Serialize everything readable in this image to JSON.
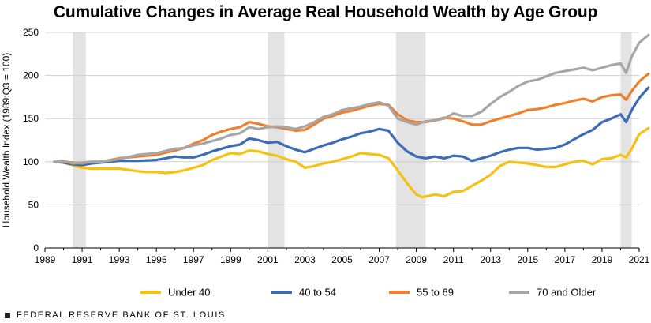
{
  "chart_data": {
    "type": "line",
    "title": "Cumulative Changes in Average Real Household Wealth by Age Group",
    "ylabel": "Household Wealth Index (1989:Q3 = 100)",
    "xlabel": "",
    "xlim": [
      1989,
      2021
    ],
    "ylim": [
      0,
      250
    ],
    "yticks": [
      0,
      50,
      100,
      150,
      200,
      250
    ],
    "xticks": [
      "1989",
      "1991",
      "1993",
      "1995",
      "1997",
      "1999",
      "2001",
      "2003",
      "2005",
      "2007",
      "2009",
      "2011",
      "2013",
      "2015",
      "2017",
      "2019",
      "2021"
    ],
    "grid": true,
    "legend_position": "bottom",
    "recessions": [
      [
        1990.5,
        1991.2
      ],
      [
        2001.0,
        2001.9
      ],
      [
        2007.9,
        2009.5
      ],
      [
        2020.0,
        2020.6
      ]
    ],
    "series": [
      {
        "name": "Under 40",
        "color": "#f5c211",
        "points": [
          [
            1989.5,
            100
          ],
          [
            1990.0,
            99
          ],
          [
            1990.5,
            96
          ],
          [
            1991.0,
            93
          ],
          [
            1991.5,
            92
          ],
          [
            1992.0,
            92
          ],
          [
            1993.0,
            92
          ],
          [
            1994.0,
            89
          ],
          [
            1994.5,
            88
          ],
          [
            1995.0,
            88
          ],
          [
            1995.5,
            87
          ],
          [
            1996.0,
            88
          ],
          [
            1996.5,
            90
          ],
          [
            1997.0,
            93
          ],
          [
            1997.5,
            96
          ],
          [
            1998.0,
            102
          ],
          [
            1998.5,
            106
          ],
          [
            1999.0,
            110
          ],
          [
            1999.5,
            109
          ],
          [
            2000.0,
            113
          ],
          [
            2000.5,
            112
          ],
          [
            2001.0,
            109
          ],
          [
            2001.5,
            107
          ],
          [
            2002.0,
            103
          ],
          [
            2002.5,
            100
          ],
          [
            2003.0,
            93
          ],
          [
            2003.5,
            95
          ],
          [
            2004.0,
            98
          ],
          [
            2004.5,
            100
          ],
          [
            2005.0,
            103
          ],
          [
            2005.5,
            106
          ],
          [
            2006.0,
            110
          ],
          [
            2006.5,
            109
          ],
          [
            2007.0,
            108
          ],
          [
            2007.5,
            104
          ],
          [
            2008.0,
            90
          ],
          [
            2008.5,
            75
          ],
          [
            2009.0,
            62
          ],
          [
            2009.3,
            59
          ],
          [
            2009.6,
            60
          ],
          [
            2010.0,
            62
          ],
          [
            2010.5,
            60
          ],
          [
            2011.0,
            65
          ],
          [
            2011.5,
            66
          ],
          [
            2012.0,
            72
          ],
          [
            2012.5,
            78
          ],
          [
            2013.0,
            85
          ],
          [
            2013.5,
            95
          ],
          [
            2014.0,
            100
          ],
          [
            2014.5,
            99
          ],
          [
            2015.0,
            98
          ],
          [
            2015.5,
            96
          ],
          [
            2016.0,
            94
          ],
          [
            2016.5,
            94
          ],
          [
            2017.0,
            97
          ],
          [
            2017.5,
            100
          ],
          [
            2018.0,
            101
          ],
          [
            2018.5,
            97
          ],
          [
            2019.0,
            103
          ],
          [
            2019.5,
            104
          ],
          [
            2020.0,
            108
          ],
          [
            2020.3,
            105
          ],
          [
            2020.6,
            115
          ],
          [
            2021.0,
            132
          ],
          [
            2021.5,
            139
          ]
        ]
      },
      {
        "name": "40 to 54",
        "color": "#3b6cb5",
        "points": [
          [
            1989.5,
            100
          ],
          [
            1990.0,
            99
          ],
          [
            1990.5,
            97
          ],
          [
            1991.0,
            96
          ],
          [
            1991.5,
            98
          ],
          [
            1992.0,
            99
          ],
          [
            1993.0,
            101
          ],
          [
            1994.0,
            101
          ],
          [
            1995.0,
            102
          ],
          [
            1996.0,
            106
          ],
          [
            1996.5,
            105
          ],
          [
            1997.0,
            105
          ],
          [
            1997.5,
            108
          ],
          [
            1998.0,
            112
          ],
          [
            1998.5,
            115
          ],
          [
            1999.0,
            118
          ],
          [
            1999.5,
            120
          ],
          [
            2000.0,
            127
          ],
          [
            2000.5,
            125
          ],
          [
            2001.0,
            122
          ],
          [
            2001.5,
            123
          ],
          [
            2002.0,
            118
          ],
          [
            2002.5,
            114
          ],
          [
            2003.0,
            111
          ],
          [
            2003.5,
            115
          ],
          [
            2004.0,
            119
          ],
          [
            2004.5,
            122
          ],
          [
            2005.0,
            126
          ],
          [
            2005.5,
            129
          ],
          [
            2006.0,
            133
          ],
          [
            2006.5,
            135
          ],
          [
            2007.0,
            138
          ],
          [
            2007.5,
            136
          ],
          [
            2008.0,
            122
          ],
          [
            2008.5,
            112
          ],
          [
            2009.0,
            106
          ],
          [
            2009.5,
            104
          ],
          [
            2010.0,
            106
          ],
          [
            2010.5,
            104
          ],
          [
            2011.0,
            107
          ],
          [
            2011.5,
            106
          ],
          [
            2012.0,
            101
          ],
          [
            2012.5,
            104
          ],
          [
            2013.0,
            107
          ],
          [
            2013.5,
            111
          ],
          [
            2014.0,
            114
          ],
          [
            2014.5,
            116
          ],
          [
            2015.0,
            116
          ],
          [
            2015.5,
            114
          ],
          [
            2016.0,
            115
          ],
          [
            2016.5,
            116
          ],
          [
            2017.0,
            120
          ],
          [
            2017.5,
            126
          ],
          [
            2018.0,
            132
          ],
          [
            2018.5,
            137
          ],
          [
            2019.0,
            146
          ],
          [
            2019.5,
            150
          ],
          [
            2020.0,
            155
          ],
          [
            2020.3,
            146
          ],
          [
            2020.6,
            160
          ],
          [
            2021.0,
            174
          ],
          [
            2021.5,
            186
          ]
        ]
      },
      {
        "name": "55 to 69",
        "color": "#f07f2b",
        "points": [
          [
            1989.5,
            100
          ],
          [
            1990.0,
            100
          ],
          [
            1990.5,
            99
          ],
          [
            1991.0,
            98
          ],
          [
            1991.5,
            100
          ],
          [
            1992.0,
            100
          ],
          [
            1993.0,
            104
          ],
          [
            1994.0,
            106
          ],
          [
            1995.0,
            108
          ],
          [
            1996.0,
            113
          ],
          [
            1996.5,
            116
          ],
          [
            1997.0,
            121
          ],
          [
            1997.5,
            125
          ],
          [
            1998.0,
            131
          ],
          [
            1998.5,
            135
          ],
          [
            1999.0,
            138
          ],
          [
            1999.5,
            140
          ],
          [
            2000.0,
            146
          ],
          [
            2000.5,
            144
          ],
          [
            2001.0,
            141
          ],
          [
            2001.5,
            140
          ],
          [
            2002.0,
            138
          ],
          [
            2002.5,
            136
          ],
          [
            2003.0,
            137
          ],
          [
            2003.5,
            143
          ],
          [
            2004.0,
            150
          ],
          [
            2004.5,
            153
          ],
          [
            2005.0,
            157
          ],
          [
            2005.5,
            159
          ],
          [
            2006.0,
            162
          ],
          [
            2006.5,
            165
          ],
          [
            2007.0,
            167
          ],
          [
            2007.5,
            166
          ],
          [
            2008.0,
            155
          ],
          [
            2008.5,
            148
          ],
          [
            2009.0,
            146
          ],
          [
            2009.5,
            146
          ],
          [
            2010.0,
            148
          ],
          [
            2010.5,
            151
          ],
          [
            2011.0,
            150
          ],
          [
            2011.5,
            147
          ],
          [
            2012.0,
            143
          ],
          [
            2012.5,
            143
          ],
          [
            2013.0,
            147
          ],
          [
            2013.5,
            150
          ],
          [
            2014.0,
            153
          ],
          [
            2014.5,
            156
          ],
          [
            2015.0,
            160
          ],
          [
            2015.5,
            161
          ],
          [
            2016.0,
            163
          ],
          [
            2016.5,
            166
          ],
          [
            2017.0,
            168
          ],
          [
            2017.5,
            171
          ],
          [
            2018.0,
            173
          ],
          [
            2018.5,
            170
          ],
          [
            2019.0,
            175
          ],
          [
            2019.5,
            177
          ],
          [
            2020.0,
            178
          ],
          [
            2020.3,
            172
          ],
          [
            2020.6,
            182
          ],
          [
            2021.0,
            193
          ],
          [
            2021.5,
            202
          ]
        ]
      },
      {
        "name": "70 and Older",
        "color": "#a6a6a6",
        "points": [
          [
            1989.5,
            100
          ],
          [
            1990.0,
            101
          ],
          [
            1990.5,
            98
          ],
          [
            1991.0,
            99
          ],
          [
            1991.5,
            100
          ],
          [
            1992.0,
            100
          ],
          [
            1993.0,
            103
          ],
          [
            1994.0,
            108
          ],
          [
            1995.0,
            110
          ],
          [
            1996.0,
            115
          ],
          [
            1996.5,
            116
          ],
          [
            1997.0,
            119
          ],
          [
            1997.5,
            121
          ],
          [
            1998.0,
            124
          ],
          [
            1998.5,
            127
          ],
          [
            1999.0,
            131
          ],
          [
            1999.5,
            133
          ],
          [
            2000.0,
            140
          ],
          [
            2000.5,
            138
          ],
          [
            2001.0,
            140
          ],
          [
            2001.5,
            141
          ],
          [
            2002.0,
            140
          ],
          [
            2002.5,
            138
          ],
          [
            2003.0,
            141
          ],
          [
            2003.5,
            146
          ],
          [
            2004.0,
            152
          ],
          [
            2004.5,
            155
          ],
          [
            2005.0,
            160
          ],
          [
            2005.5,
            162
          ],
          [
            2006.0,
            164
          ],
          [
            2006.5,
            167
          ],
          [
            2007.0,
            169
          ],
          [
            2007.5,
            165
          ],
          [
            2008.0,
            150
          ],
          [
            2008.5,
            146
          ],
          [
            2009.0,
            143
          ],
          [
            2009.5,
            147
          ],
          [
            2010.0,
            148
          ],
          [
            2010.5,
            150
          ],
          [
            2011.0,
            156
          ],
          [
            2011.5,
            153
          ],
          [
            2012.0,
            153
          ],
          [
            2012.5,
            158
          ],
          [
            2013.0,
            167
          ],
          [
            2013.5,
            175
          ],
          [
            2014.0,
            181
          ],
          [
            2014.5,
            188
          ],
          [
            2015.0,
            193
          ],
          [
            2015.5,
            195
          ],
          [
            2016.0,
            199
          ],
          [
            2016.5,
            203
          ],
          [
            2017.0,
            205
          ],
          [
            2017.5,
            207
          ],
          [
            2018.0,
            209
          ],
          [
            2018.5,
            206
          ],
          [
            2019.0,
            209
          ],
          [
            2019.5,
            212
          ],
          [
            2020.0,
            214
          ],
          [
            2020.3,
            203
          ],
          [
            2020.6,
            222
          ],
          [
            2021.0,
            238
          ],
          [
            2021.5,
            247
          ]
        ]
      }
    ]
  },
  "footer": {
    "text": "FEDERAL RESERVE BANK OF ST. LOUIS"
  }
}
